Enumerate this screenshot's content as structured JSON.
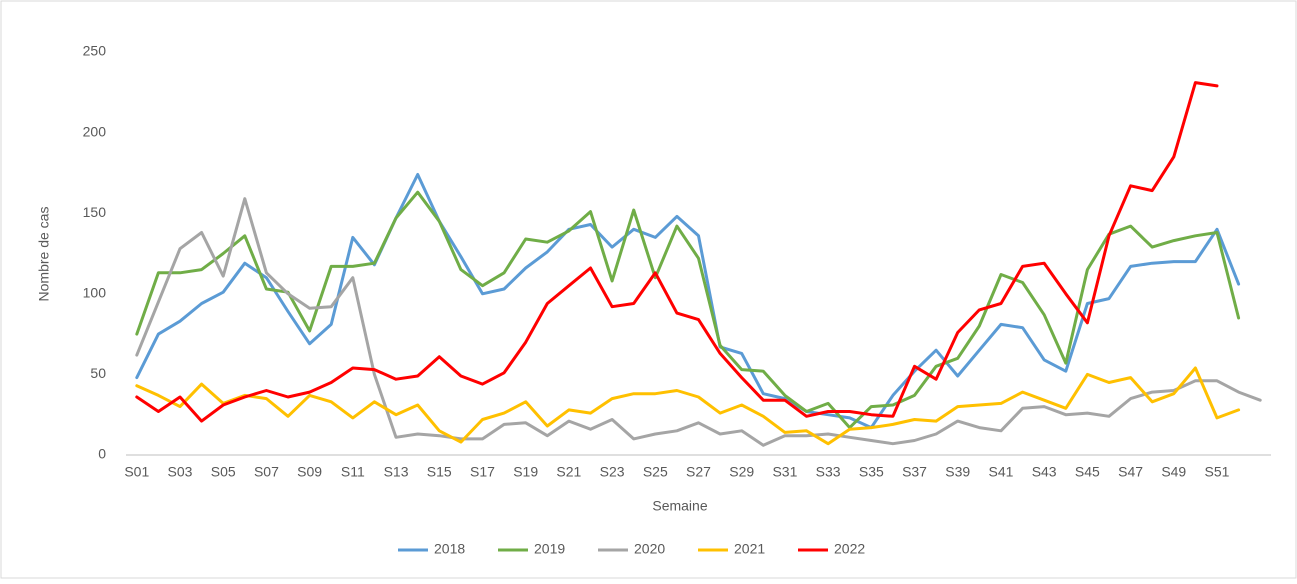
{
  "chart_data": {
    "type": "line",
    "x_label": "Semaine",
    "y_label": "Nombre de cas",
    "categories": [
      "S01",
      null,
      "S03",
      null,
      "S05",
      null,
      "S07",
      null,
      "S09",
      null,
      "S11",
      null,
      "S13",
      null,
      "S15",
      null,
      "S17",
      null,
      "S19",
      null,
      "S21",
      null,
      "S23",
      null,
      "S25",
      null,
      "S27",
      null,
      "S29",
      null,
      "S31",
      null,
      "S33",
      null,
      "S35",
      null,
      "S37",
      null,
      "S39",
      null,
      "S41",
      null,
      "S43",
      null,
      "S45",
      null,
      "S47",
      null,
      "S49",
      null,
      "S51",
      null,
      null
    ],
    "ylim": [
      0,
      250
    ],
    "yticks": [
      0,
      50,
      100,
      150,
      200,
      250
    ],
    "grid": false,
    "legend": "bottom",
    "series": [
      {
        "name": "2018",
        "color": "#5b9bd5",
        "values": [
          48,
          75,
          83,
          94,
          101,
          119,
          110,
          89,
          69,
          81,
          135,
          118,
          147,
          174,
          145,
          123,
          100,
          103,
          116,
          126,
          140,
          143,
          129,
          140,
          135,
          148,
          136,
          67,
          63,
          38,
          35,
          27,
          25,
          23,
          17,
          37,
          52,
          65,
          49,
          65,
          81,
          79,
          59,
          52,
          94,
          97,
          117,
          119,
          120,
          120,
          140,
          106,
          null
        ]
      },
      {
        "name": "2019",
        "color": "#70ad47",
        "values": [
          75,
          113,
          113,
          115,
          125,
          136,
          103,
          101,
          77,
          117,
          117,
          119,
          147,
          163,
          145,
          115,
          105,
          113,
          134,
          132,
          139,
          151,
          108,
          152,
          110,
          142,
          122,
          68,
          53,
          52,
          37,
          27,
          32,
          17,
          30,
          31,
          37,
          55,
          60,
          80,
          112,
          107,
          87,
          57,
          115,
          137,
          142,
          129,
          133,
          136,
          138,
          85,
          null
        ]
      },
      {
        "name": "2020",
        "color": "#a5a5a5",
        "values": [
          62,
          95,
          128,
          138,
          111,
          159,
          113,
          100,
          91,
          92,
          110,
          50,
          11,
          13,
          12,
          10,
          10,
          19,
          20,
          12,
          21,
          16,
          22,
          10,
          13,
          15,
          20,
          13,
          15,
          6,
          12,
          12,
          13,
          11,
          9,
          7,
          9,
          13,
          21,
          17,
          15,
          29,
          30,
          25,
          26,
          24,
          35,
          39,
          40,
          46,
          46,
          39,
          34
        ]
      },
      {
        "name": "2021",
        "color": "#ffc000",
        "values": [
          43,
          37,
          30,
          44,
          32,
          37,
          35,
          24,
          37,
          33,
          23,
          33,
          25,
          31,
          15,
          8,
          22,
          26,
          33,
          18,
          28,
          26,
          35,
          38,
          38,
          40,
          36,
          26,
          31,
          24,
          14,
          15,
          7,
          16,
          17,
          19,
          22,
          21,
          30,
          31,
          32,
          39,
          34,
          29,
          50,
          45,
          48,
          33,
          38,
          54,
          23,
          28,
          null
        ]
      },
      {
        "name": "2022",
        "color": "#ff0000",
        "values": [
          36,
          27,
          36,
          21,
          31,
          36,
          40,
          36,
          39,
          45,
          54,
          53,
          47,
          49,
          61,
          49,
          44,
          51,
          70,
          94,
          105,
          116,
          92,
          94,
          113,
          88,
          84,
          63,
          48,
          34,
          34,
          24,
          27,
          27,
          25,
          24,
          55,
          47,
          76,
          90,
          94,
          117,
          119,
          100,
          82,
          136,
          167,
          164,
          185,
          231,
          229,
          null,
          null
        ]
      }
    ]
  }
}
